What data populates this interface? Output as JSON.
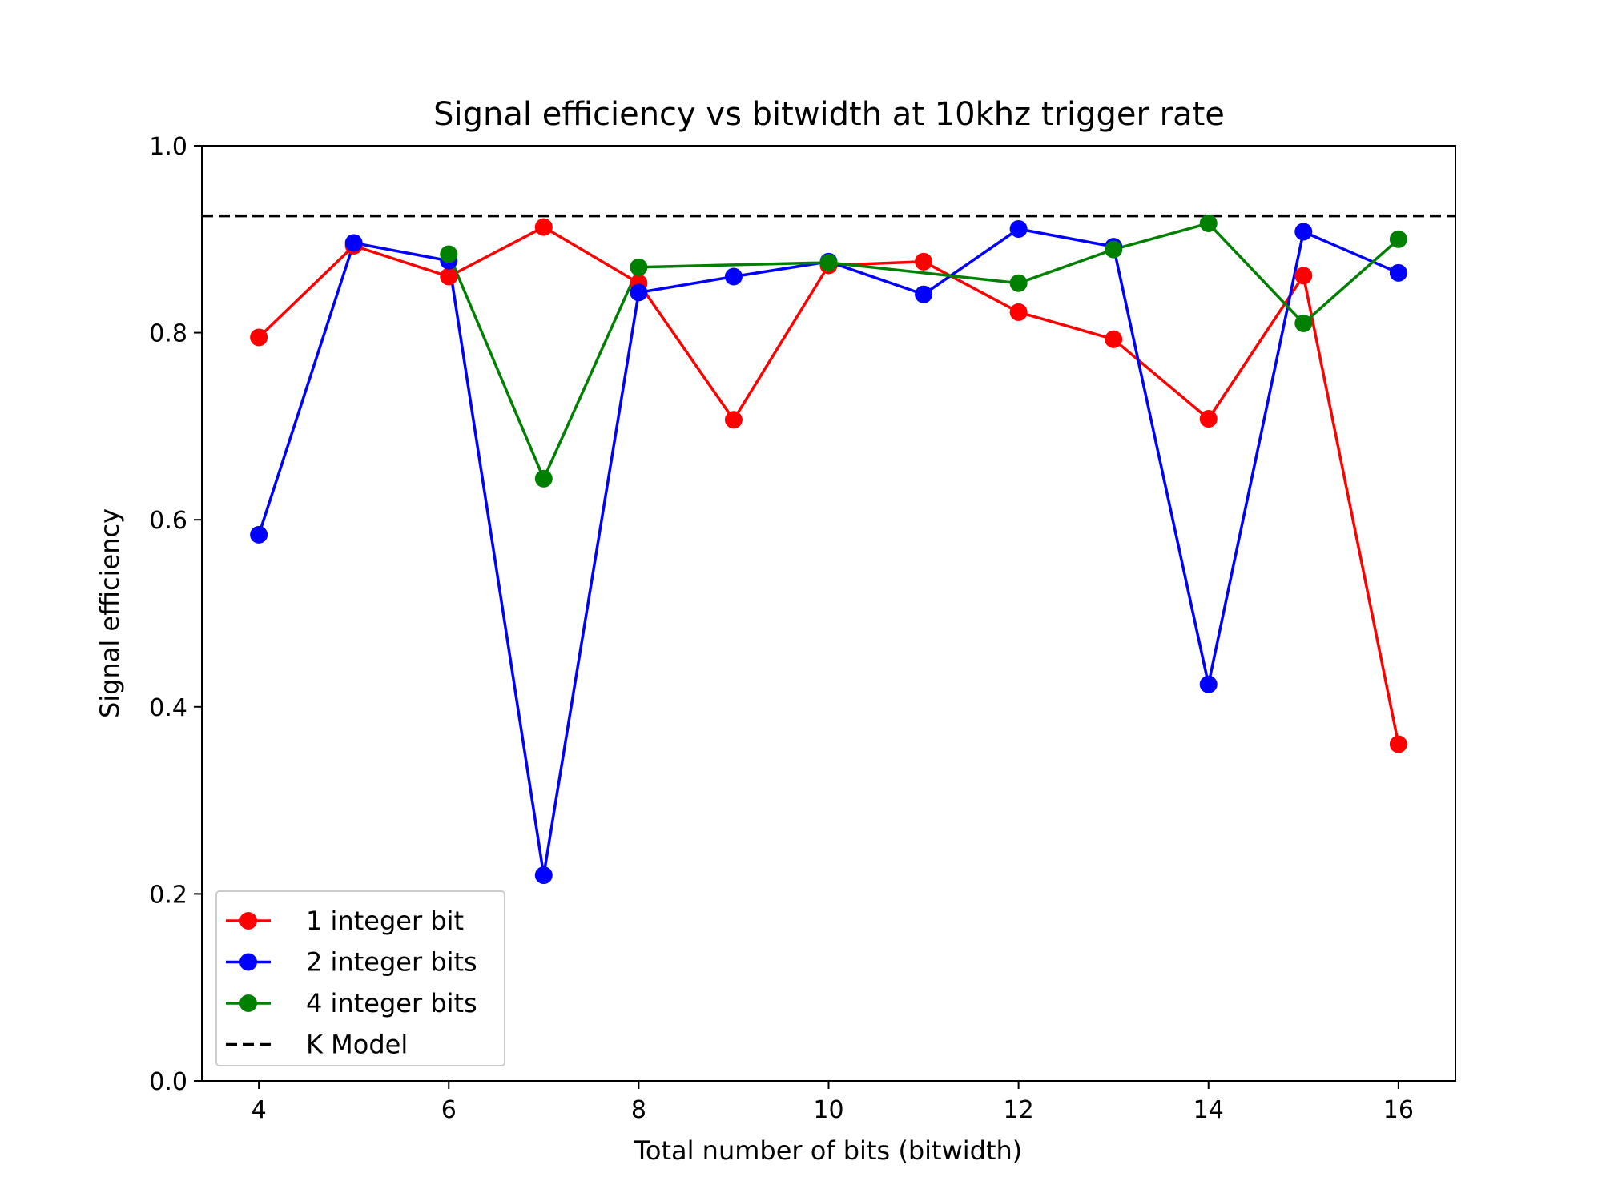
{
  "chart_data": {
    "type": "line",
    "title": "Signal efficiency vs bitwidth at 10khz trigger rate",
    "xlabel": "Total number of bits (bitwidth)",
    "ylabel": "Signal efficiency",
    "xlim": [
      3.4,
      16.6
    ],
    "ylim": [
      0.0,
      1.0
    ],
    "xticks": [
      "4",
      "6",
      "8",
      "10",
      "12",
      "14",
      "16"
    ],
    "yticks": [
      "0.0",
      "0.2",
      "0.4",
      "0.6",
      "0.8",
      "1.0"
    ],
    "grid": false,
    "legend_position": "lower-left",
    "series": [
      {
        "name": "1 integer bit",
        "color": "#ff0000",
        "x": [
          4,
          5,
          6,
          7,
          8,
          9,
          10,
          11,
          12,
          13,
          14,
          15,
          16
        ],
        "y": [
          0.795,
          0.893,
          0.86,
          0.913,
          0.853,
          0.707,
          0.872,
          0.876,
          0.822,
          0.793,
          0.708,
          0.861,
          0.36
        ]
      },
      {
        "name": "2 integer bits",
        "color": "#0000ff",
        "x": [
          4,
          5,
          6,
          7,
          8,
          9,
          10,
          11,
          12,
          13,
          14,
          15,
          16
        ],
        "y": [
          0.584,
          0.896,
          0.877,
          0.22,
          0.843,
          0.86,
          0.876,
          0.841,
          0.911,
          0.892,
          0.424,
          0.908,
          0.864
        ]
      },
      {
        "name": "4 integer bits",
        "color": "#008000",
        "x": [
          6,
          7,
          8,
          10,
          12,
          13,
          14,
          15,
          16
        ],
        "y": [
          0.884,
          0.644,
          0.87,
          0.875,
          0.853,
          0.889,
          0.917,
          0.81,
          0.9
        ]
      }
    ],
    "reference_line": {
      "name": "K Model",
      "color": "#000000",
      "y": 0.925
    }
  }
}
